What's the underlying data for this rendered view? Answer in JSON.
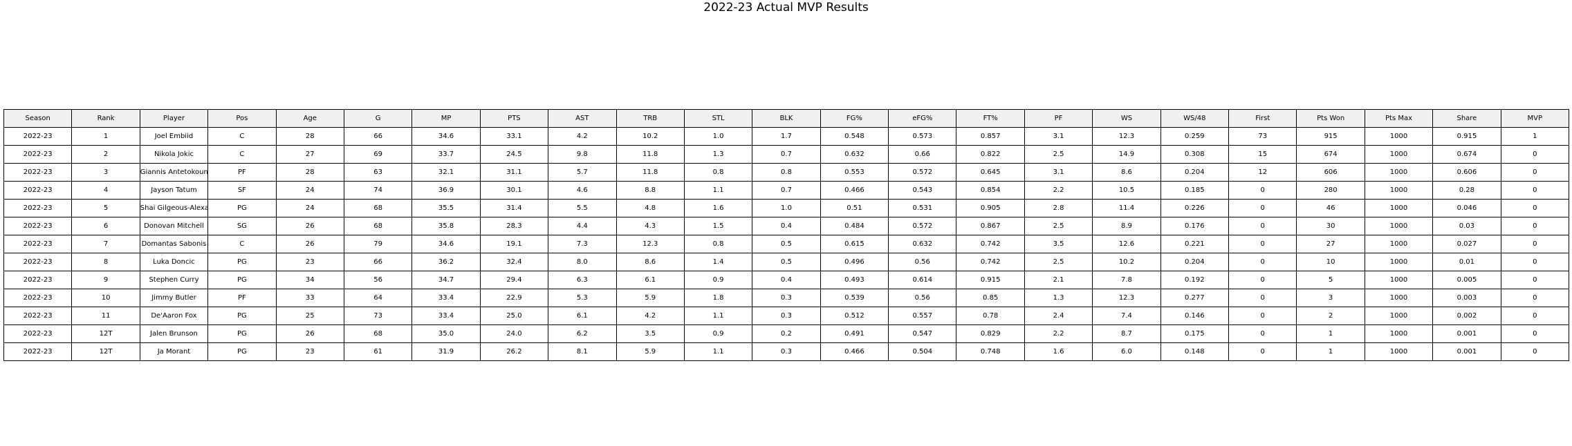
{
  "chart_data": {
    "type": "table",
    "title": "2022-23 Actual MVP Results",
    "columns": [
      "Season",
      "Rank",
      "Player",
      "Pos",
      "Age",
      "G",
      "MP",
      "PTS",
      "AST",
      "TRB",
      "STL",
      "BLK",
      "FG%",
      "eFG%",
      "FT%",
      "PF",
      "WS",
      "WS/48",
      "First",
      "Pts Won",
      "Pts Max",
      "Share",
      "MVP"
    ],
    "rows": [
      [
        "2022-23",
        "1",
        "Joel Embiid",
        "C",
        "28",
        "66",
        "34.6",
        "33.1",
        "4.2",
        "10.2",
        "1.0",
        "1.7",
        "0.548",
        "0.573",
        "0.857",
        "3.1",
        "12.3",
        "0.259",
        "73",
        "915",
        "1000",
        "0.915",
        "1"
      ],
      [
        "2022-23",
        "2",
        "Nikola Jokic",
        "C",
        "27",
        "69",
        "33.7",
        "24.5",
        "9.8",
        "11.8",
        "1.3",
        "0.7",
        "0.632",
        "0.66",
        "0.822",
        "2.5",
        "14.9",
        "0.308",
        "15",
        "674",
        "1000",
        "0.674",
        "0"
      ],
      [
        "2022-23",
        "3",
        "Giannis Antetokounmpo",
        "PF",
        "28",
        "63",
        "32.1",
        "31.1",
        "5.7",
        "11.8",
        "0.8",
        "0.8",
        "0.553",
        "0.572",
        "0.645",
        "3.1",
        "8.6",
        "0.204",
        "12",
        "606",
        "1000",
        "0.606",
        "0"
      ],
      [
        "2022-23",
        "4",
        "Jayson Tatum",
        "SF",
        "24",
        "74",
        "36.9",
        "30.1",
        "4.6",
        "8.8",
        "1.1",
        "0.7",
        "0.466",
        "0.543",
        "0.854",
        "2.2",
        "10.5",
        "0.185",
        "0",
        "280",
        "1000",
        "0.28",
        "0"
      ],
      [
        "2022-23",
        "5",
        "Shai Gilgeous-Alexander",
        "PG",
        "24",
        "68",
        "35.5",
        "31.4",
        "5.5",
        "4.8",
        "1.6",
        "1.0",
        "0.51",
        "0.531",
        "0.905",
        "2.8",
        "11.4",
        "0.226",
        "0",
        "46",
        "1000",
        "0.046",
        "0"
      ],
      [
        "2022-23",
        "6",
        "Donovan Mitchell",
        "SG",
        "26",
        "68",
        "35.8",
        "28.3",
        "4.4",
        "4.3",
        "1.5",
        "0.4",
        "0.484",
        "0.572",
        "0.867",
        "2.5",
        "8.9",
        "0.176",
        "0",
        "30",
        "1000",
        "0.03",
        "0"
      ],
      [
        "2022-23",
        "7",
        "Domantas Sabonis",
        "C",
        "26",
        "79",
        "34.6",
        "19.1",
        "7.3",
        "12.3",
        "0.8",
        "0.5",
        "0.615",
        "0.632",
        "0.742",
        "3.5",
        "12.6",
        "0.221",
        "0",
        "27",
        "1000",
        "0.027",
        "0"
      ],
      [
        "2022-23",
        "8",
        "Luka Doncic",
        "PG",
        "23",
        "66",
        "36.2",
        "32.4",
        "8.0",
        "8.6",
        "1.4",
        "0.5",
        "0.496",
        "0.56",
        "0.742",
        "2.5",
        "10.2",
        "0.204",
        "0",
        "10",
        "1000",
        "0.01",
        "0"
      ],
      [
        "2022-23",
        "9",
        "Stephen Curry",
        "PG",
        "34",
        "56",
        "34.7",
        "29.4",
        "6.3",
        "6.1",
        "0.9",
        "0.4",
        "0.493",
        "0.614",
        "0.915",
        "2.1",
        "7.8",
        "0.192",
        "0",
        "5",
        "1000",
        "0.005",
        "0"
      ],
      [
        "2022-23",
        "10",
        "Jimmy Butler",
        "PF",
        "33",
        "64",
        "33.4",
        "22.9",
        "5.3",
        "5.9",
        "1.8",
        "0.3",
        "0.539",
        "0.56",
        "0.85",
        "1.3",
        "12.3",
        "0.277",
        "0",
        "3",
        "1000",
        "0.003",
        "0"
      ],
      [
        "2022-23",
        "11",
        "De'Aaron Fox",
        "PG",
        "25",
        "73",
        "33.4",
        "25.0",
        "6.1",
        "4.2",
        "1.1",
        "0.3",
        "0.512",
        "0.557",
        "0.78",
        "2.4",
        "7.4",
        "0.146",
        "0",
        "2",
        "1000",
        "0.002",
        "0"
      ],
      [
        "2022-23",
        "12T",
        "Jalen Brunson",
        "PG",
        "26",
        "68",
        "35.0",
        "24.0",
        "6.2",
        "3.5",
        "0.9",
        "0.2",
        "0.491",
        "0.547",
        "0.829",
        "2.2",
        "8.7",
        "0.175",
        "0",
        "1",
        "1000",
        "0.001",
        "0"
      ],
      [
        "2022-23",
        "12T",
        "Ja Morant",
        "PG",
        "23",
        "61",
        "31.9",
        "26.2",
        "8.1",
        "5.9",
        "1.1",
        "0.3",
        "0.466",
        "0.504",
        "0.748",
        "1.6",
        "6.0",
        "0.148",
        "0",
        "1",
        "1000",
        "0.001",
        "0"
      ]
    ],
    "header_background": "#f0f0f0",
    "cell_background": "#ffffff",
    "border_color": "#000000"
  }
}
